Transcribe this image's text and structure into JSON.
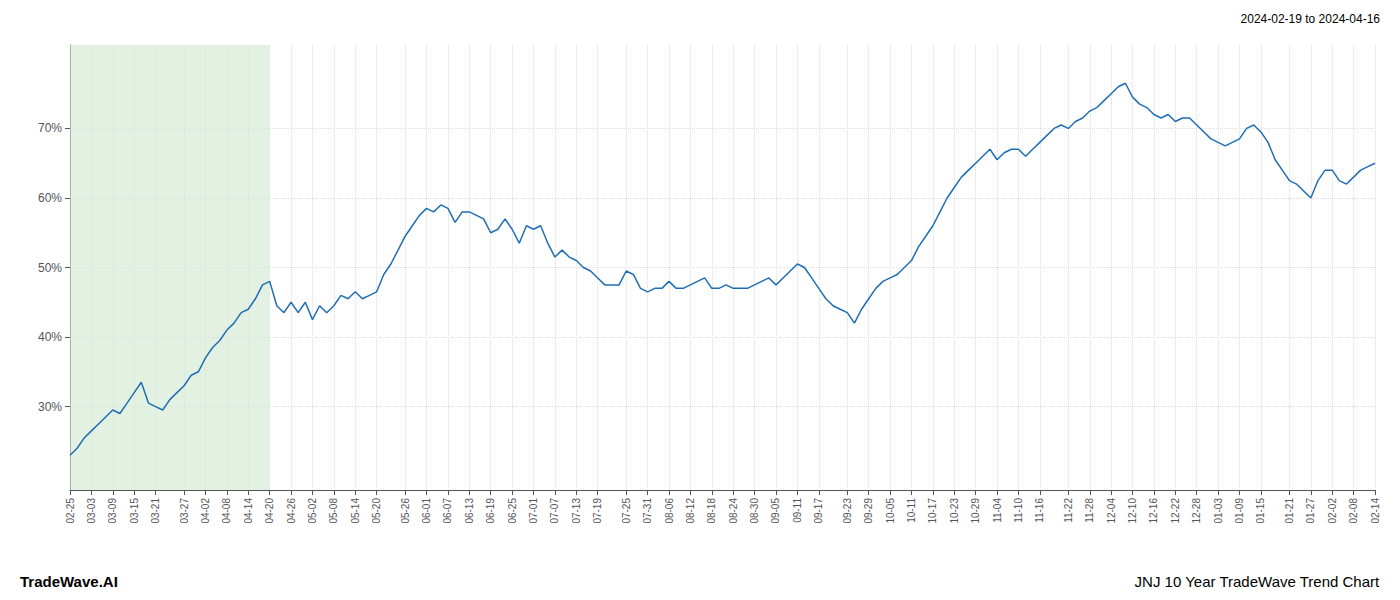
{
  "chart_data": {
    "type": "line",
    "title": "JNJ 10 Year TradeWave Trend Chart",
    "subtitle": "2024-02-19 to 2024-04-16",
    "annotations": [
      "TradeWave.AI"
    ],
    "color": "#1f6eb5",
    "grid": true,
    "shade": {
      "to": "04-20",
      "color": "#d4e9d4"
    },
    "ylim": [
      18,
      82
    ],
    "yticks": [
      {
        "value": 30,
        "label": "30%"
      },
      {
        "value": 40,
        "label": "40%"
      },
      {
        "value": 50,
        "label": "50%"
      },
      {
        "value": 60,
        "label": "60%"
      },
      {
        "value": 70,
        "label": "70%"
      }
    ],
    "categories": [
      "02-25",
      null,
      null,
      "03-03",
      null,
      null,
      "03-09",
      null,
      null,
      "03-15",
      null,
      null,
      "03-21",
      null,
      null,
      null,
      "03-27",
      null,
      null,
      "04-02",
      null,
      null,
      "04-08",
      null,
      null,
      "04-14",
      null,
      null,
      "04-20",
      null,
      null,
      "04-26",
      null,
      null,
      "05-02",
      null,
      null,
      "05-08",
      null,
      null,
      "05-14",
      null,
      null,
      "05-20",
      null,
      null,
      null,
      "05-26",
      null,
      null,
      "06-01",
      null,
      null,
      "06-07",
      null,
      null,
      "06-13",
      null,
      null,
      "06-19",
      null,
      null,
      "06-25",
      null,
      null,
      "07-01",
      null,
      null,
      "07-07",
      null,
      null,
      "07-13",
      null,
      null,
      "07-19",
      null,
      null,
      null,
      "07-25",
      null,
      null,
      "07-31",
      null,
      null,
      "08-06",
      null,
      null,
      "08-12",
      null,
      null,
      "08-18",
      null,
      null,
      "08-24",
      null,
      null,
      "08-30",
      null,
      null,
      "09-05",
      null,
      null,
      "09-11",
      null,
      null,
      "09-17",
      null,
      null,
      null,
      "09-23",
      null,
      null,
      "09-29",
      null,
      null,
      "10-05",
      null,
      null,
      "10-11",
      null,
      null,
      "10-17",
      null,
      null,
      "10-23",
      null,
      null,
      "10-29",
      null,
      null,
      "11-04",
      null,
      null,
      "11-10",
      null,
      null,
      "11-16",
      null,
      null,
      null,
      "11-22",
      null,
      null,
      "11-28",
      null,
      null,
      "12-04",
      null,
      null,
      "12-10",
      null,
      null,
      "12-16",
      null,
      null,
      "12-22",
      null,
      null,
      "12-28",
      null,
      null,
      "01-03",
      null,
      null,
      "01-09",
      null,
      null,
      "01-15",
      null,
      null,
      null,
      "01-21",
      null,
      null,
      "01-27",
      null,
      null,
      "02-02",
      null,
      null,
      "02-08",
      null,
      null,
      "02-14"
    ],
    "values": [
      23.0,
      24.0,
      25.5,
      26.5,
      27.5,
      28.5,
      29.5,
      29.0,
      30.5,
      32.0,
      33.5,
      30.5,
      30.0,
      29.5,
      31.0,
      32.0,
      33.0,
      34.5,
      35.0,
      37.0,
      38.5,
      39.5,
      41.0,
      42.0,
      43.5,
      44.0,
      45.5,
      47.5,
      48.0,
      44.5,
      43.5,
      45.0,
      43.5,
      45.0,
      42.5,
      44.5,
      43.5,
      44.5,
      46.0,
      45.5,
      46.5,
      45.5,
      46.0,
      46.5,
      49.0,
      50.5,
      52.5,
      54.5,
      56.0,
      57.5,
      58.5,
      58.0,
      59.0,
      58.5,
      56.5,
      58.0,
      58.0,
      57.5,
      57.0,
      55.0,
      55.5,
      57.0,
      55.5,
      53.5,
      56.0,
      55.5,
      56.0,
      53.5,
      51.5,
      52.5,
      51.5,
      51.0,
      50.0,
      49.5,
      48.5,
      47.5,
      47.5,
      47.5,
      49.5,
      49.0,
      47.0,
      46.5,
      47.0,
      47.0,
      48.0,
      47.0,
      47.0,
      47.5,
      48.0,
      48.5,
      47.0,
      47.0,
      47.5,
      47.0,
      47.0,
      47.0,
      47.5,
      48.0,
      48.5,
      47.5,
      48.5,
      49.5,
      50.5,
      50.0,
      48.5,
      47.0,
      45.5,
      44.5,
      44.0,
      43.5,
      42.0,
      44.0,
      45.5,
      47.0,
      48.0,
      48.5,
      49.0,
      50.0,
      51.0,
      53.0,
      54.5,
      56.0,
      58.0,
      60.0,
      61.5,
      63.0,
      64.0,
      65.0,
      66.0,
      67.0,
      65.5,
      66.5,
      67.0,
      67.0,
      66.0,
      67.0,
      68.0,
      69.0,
      70.0,
      70.5,
      70.0,
      71.0,
      71.5,
      72.5,
      73.0,
      74.0,
      75.0,
      76.0,
      76.5,
      74.5,
      73.5,
      73.0,
      72.0,
      71.5,
      72.0,
      71.0,
      71.5,
      71.5,
      70.5,
      69.5,
      68.5,
      68.0,
      67.5,
      68.0,
      68.5,
      70.0,
      70.5,
      69.5,
      68.0,
      65.5,
      64.0,
      62.5,
      62.0,
      61.0,
      60.0,
      62.5,
      64.0,
      64.0,
      62.5,
      62.0,
      63.0,
      64.0,
      64.5,
      65.0
    ]
  }
}
